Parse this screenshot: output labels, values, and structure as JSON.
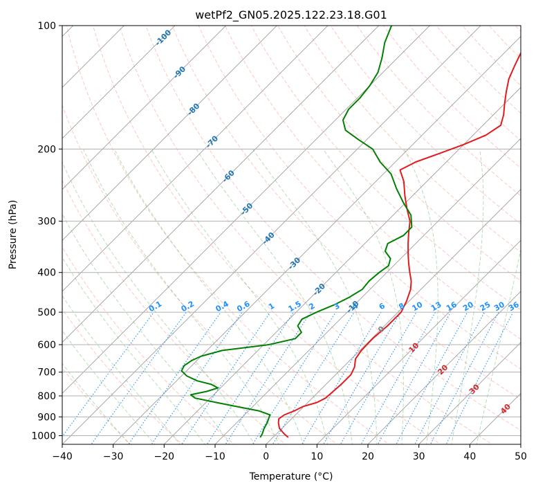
{
  "chart_data": {
    "type": "line",
    "title": "wetPf2_GN05.2025.122.23.18.G01",
    "xlabel": "Temperature (°C)",
    "ylabel": "Pressure (hPa)",
    "xlim": [
      -40,
      50
    ],
    "ylim": [
      1050,
      100
    ],
    "yscale": "log",
    "grid": true,
    "x_ticks": [
      -40,
      -30,
      -20,
      -10,
      0,
      10,
      20,
      30,
      40,
      50
    ],
    "y_ticks": [
      100,
      200,
      300,
      400,
      500,
      600,
      700,
      800,
      900,
      1000
    ],
    "x_tick_labels": [
      "−40",
      "−30",
      "−20",
      "−10",
      "0",
      "10",
      "20",
      "30",
      "40",
      "50"
    ],
    "y_tick_labels": [
      "100",
      "200",
      "300",
      "400",
      "500",
      "600",
      "700",
      "800",
      "900",
      "1000"
    ],
    "colors": {
      "temperature": "#e31a1c",
      "dewpoint": "#008000",
      "isotherm_label": "#1f77b4",
      "mixing_ratio": "#1e90ff",
      "moist_adiabat_label": "#d62728",
      "dry_adiabat": "#fa8072",
      "moist_adiabat": "#2ca02c"
    },
    "series": [
      {
        "points": [
          {
            "p": 1010,
            "t": 3.0
          },
          {
            "p": 990,
            "t": 1.5
          },
          {
            "p": 960,
            "t": -0.5
          },
          {
            "p": 930,
            "t": -1.8
          },
          {
            "p": 910,
            "t": -2.5
          },
          {
            "p": 890,
            "t": -2.2
          },
          {
            "p": 870,
            "t": -1.0
          },
          {
            "p": 850,
            "t": -0.2
          },
          {
            "p": 830,
            "t": 1.8
          },
          {
            "p": 810,
            "t": 2.6
          },
          {
            "p": 780,
            "t": 2.8
          },
          {
            "p": 750,
            "t": 3.0
          },
          {
            "p": 710,
            "t": 3.0
          },
          {
            "p": 680,
            "t": 2.2
          },
          {
            "p": 650,
            "t": 0.8
          },
          {
            "p": 620,
            "t": 0.3
          },
          {
            "p": 580,
            "t": 0.2
          },
          {
            "p": 540,
            "t": 0.6
          },
          {
            "p": 500,
            "t": 0.6
          },
          {
            "p": 470,
            "t": -0.5
          },
          {
            "p": 440,
            "t": -2.0
          },
          {
            "p": 420,
            "t": -3.5
          },
          {
            "p": 400,
            "t": -5.5
          },
          {
            "p": 380,
            "t": -7.5
          },
          {
            "p": 360,
            "t": -9.5
          },
          {
            "p": 340,
            "t": -11.5
          },
          {
            "p": 320,
            "t": -13.5
          },
          {
            "p": 300,
            "t": -15.5
          },
          {
            "p": 280,
            "t": -18.5
          },
          {
            "p": 260,
            "t": -21.5
          },
          {
            "p": 240,
            "t": -24.5
          },
          {
            "p": 225,
            "t": -27.5
          },
          {
            "p": 215,
            "t": -26.0
          },
          {
            "p": 205,
            "t": -23.0
          },
          {
            "p": 195,
            "t": -20.0
          },
          {
            "p": 185,
            "t": -17.5
          },
          {
            "p": 175,
            "t": -16.5
          },
          {
            "p": 165,
            "t": -18.0
          },
          {
            "p": 155,
            "t": -20.0
          },
          {
            "p": 145,
            "t": -22.0
          },
          {
            "p": 135,
            "t": -24.0
          },
          {
            "p": 125,
            "t": -25.5
          },
          {
            "p": 115,
            "t": -27.0
          },
          {
            "p": 108,
            "t": -28.0
          },
          {
            "p": 100,
            "t": -28.5
          }
        ]
      },
      {
        "points": [
          {
            "p": 1010,
            "t": -2.5
          },
          {
            "p": 990,
            "t": -2.8
          },
          {
            "p": 960,
            "t": -3.5
          },
          {
            "p": 930,
            "t": -4.0
          },
          {
            "p": 910,
            "t": -4.5
          },
          {
            "p": 890,
            "t": -5.0
          },
          {
            "p": 870,
            "t": -8.0
          },
          {
            "p": 850,
            "t": -13.0
          },
          {
            "p": 830,
            "t": -18.0
          },
          {
            "p": 810,
            "t": -23.0
          },
          {
            "p": 795,
            "t": -24.5
          },
          {
            "p": 780,
            "t": -22.0
          },
          {
            "p": 765,
            "t": -20.5
          },
          {
            "p": 750,
            "t": -22.5
          },
          {
            "p": 735,
            "t": -26.0
          },
          {
            "p": 715,
            "t": -29.0
          },
          {
            "p": 695,
            "t": -31.0
          },
          {
            "p": 675,
            "t": -31.5
          },
          {
            "p": 655,
            "t": -31.0
          },
          {
            "p": 640,
            "t": -30.0
          },
          {
            "p": 620,
            "t": -27.0
          },
          {
            "p": 600,
            "t": -19.0
          },
          {
            "p": 580,
            "t": -15.0
          },
          {
            "p": 560,
            "t": -15.0
          },
          {
            "p": 540,
            "t": -17.0
          },
          {
            "p": 520,
            "t": -17.5
          },
          {
            "p": 500,
            "t": -16.0
          },
          {
            "p": 480,
            "t": -14.0
          },
          {
            "p": 460,
            "t": -12.5
          },
          {
            "p": 440,
            "t": -11.5
          },
          {
            "p": 420,
            "t": -11.8
          },
          {
            "p": 400,
            "t": -11.5
          },
          {
            "p": 385,
            "t": -11.0
          },
          {
            "p": 370,
            "t": -12.0
          },
          {
            "p": 355,
            "t": -14.5
          },
          {
            "p": 340,
            "t": -15.5
          },
          {
            "p": 325,
            "t": -14.0
          },
          {
            "p": 310,
            "t": -14.0
          },
          {
            "p": 290,
            "t": -16.5
          },
          {
            "p": 270,
            "t": -20.5
          },
          {
            "p": 250,
            "t": -24.5
          },
          {
            "p": 230,
            "t": -28.5
          },
          {
            "p": 215,
            "t": -33.0
          },
          {
            "p": 200,
            "t": -37.0
          },
          {
            "p": 190,
            "t": -41.5
          },
          {
            "p": 180,
            "t": -46.0
          },
          {
            "p": 170,
            "t": -48.5
          },
          {
            "p": 160,
            "t": -49.5
          },
          {
            "p": 150,
            "t": -49.5
          },
          {
            "p": 140,
            "t": -50.0
          },
          {
            "p": 130,
            "t": -51.0
          },
          {
            "p": 120,
            "t": -53.0
          },
          {
            "p": 110,
            "t": -55.5
          },
          {
            "p": 100,
            "t": -57.5
          }
        ]
      }
    ],
    "isotherm_labels": [
      "-100",
      "-90",
      "-80",
      "-70",
      "-60",
      "-50",
      "-40",
      "-30",
      "-20",
      "-10",
      "0"
    ],
    "isotherm_label_values": [
      -100,
      -90,
      -80,
      -70,
      -60,
      -50,
      -40,
      -30,
      -20,
      -10,
      0
    ],
    "isotherm_label_pressures": [
      107,
      130,
      160,
      192,
      233,
      280,
      330,
      380,
      440,
      485,
      550
    ],
    "mixing_ratio_labels": [
      "0.1",
      "0.2",
      "0.4",
      "0.6",
      "1",
      "1.5",
      "2",
      "3",
      "4",
      "6",
      "8",
      "10",
      "13",
      "16",
      "20",
      "25",
      "30",
      "36"
    ],
    "mixing_ratio_values": [
      0.1,
      0.2,
      0.4,
      0.6,
      1,
      1.5,
      2,
      3,
      4,
      6,
      8,
      10,
      13,
      16,
      20,
      25,
      30,
      36
    ],
    "moist_adiabat_labels": [
      "10",
      "20",
      "30",
      "40"
    ],
    "moist_adiabat_label_temps": [
      10,
      20,
      30,
      40
    ],
    "moist_adiabat_label_pressures": [
      610,
      690,
      770,
      860
    ]
  }
}
